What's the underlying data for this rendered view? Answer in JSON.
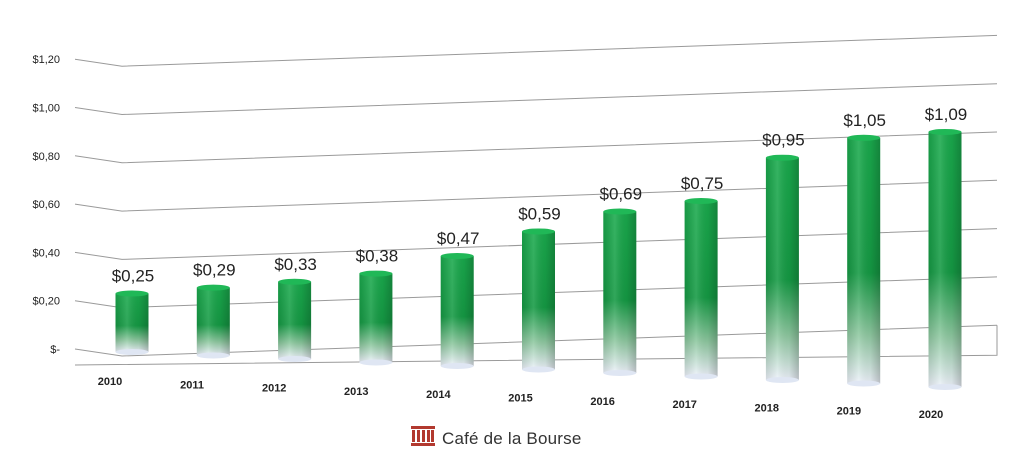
{
  "chart_data": {
    "type": "bar",
    "categories": [
      "2010",
      "2011",
      "2012",
      "2013",
      "2014",
      "2015",
      "2016",
      "2017",
      "2018",
      "2019",
      "2020"
    ],
    "values": [
      0.25,
      0.29,
      0.33,
      0.38,
      0.47,
      0.59,
      0.69,
      0.75,
      0.95,
      1.05,
      1.09
    ],
    "data_labels": [
      "$0,25",
      "$0,29",
      "$0,33",
      "$0,38",
      "$0,47",
      "$0,59",
      "$0,69",
      "$0,75",
      "$0,95",
      "$1,05",
      "$1,09"
    ],
    "y_ticks": [
      {
        "value": 0,
        "label": "$-"
      },
      {
        "value": 0.2,
        "label": "$0,20"
      },
      {
        "value": 0.4,
        "label": "$0,40"
      },
      {
        "value": 0.6,
        "label": "$0,60"
      },
      {
        "value": 0.8,
        "label": "$0,80"
      },
      {
        "value": 1.0,
        "label": "$1,00"
      },
      {
        "value": 1.2,
        "label": "$1,20"
      }
    ],
    "ylim": [
      0,
      1.2
    ],
    "grid": true,
    "legend": "none",
    "colors": {
      "bar_top": "#17a64a",
      "bar_mid": "#13923e",
      "bar_bottom": "#e8f0fb",
      "grid": "#9a9a9a"
    }
  },
  "brand": {
    "name": "Café de la Bourse",
    "icon": "cafe-de-la-bourse-logo-icon",
    "color": "#b2392f"
  }
}
